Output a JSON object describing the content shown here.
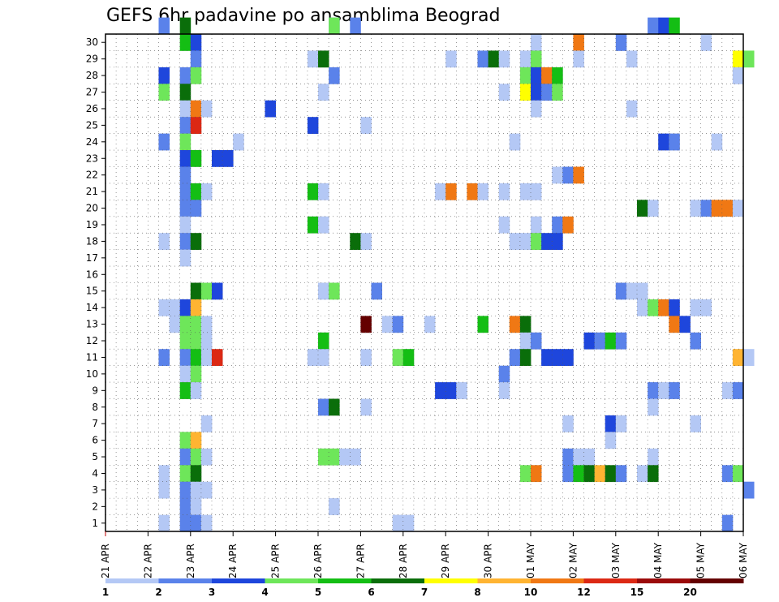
{
  "chart_data": {
    "type": "heatmap",
    "title": "GEFS 6hr padavine po ansamblima Beograd",
    "xlabel": "",
    "ylabel": "",
    "x_tick_labels": [
      "21 APR",
      "22 APR",
      "23 APR",
      "24 APR",
      "25 APR",
      "26 APR",
      "27 APR",
      "28 APR",
      "29 APR",
      "30 APR",
      "01 MAY",
      "02 MAY",
      "03 MAY",
      "04 MAY",
      "05 MAY",
      "06 MAY"
    ],
    "y_tick_labels": [
      "1",
      "2",
      "3",
      "4",
      "5",
      "6",
      "7",
      "8",
      "9",
      "10",
      "11",
      "12",
      "13",
      "14",
      "15",
      "16",
      "17",
      "18",
      "19",
      "20",
      "21",
      "22",
      "23",
      "24",
      "25",
      "26",
      "27",
      "28",
      "29",
      "30"
    ],
    "ylim": [
      0,
      30
    ],
    "time_steps": 61,
    "grid": true,
    "legend_position": "bottom",
    "legend": {
      "labels": [
        "1",
        "2",
        "3",
        "4",
        "5",
        "6",
        "7",
        "8",
        "10",
        "12",
        "15",
        "20"
      ],
      "colors": [
        "#b4c8f5",
        "#5a82ea",
        "#1e46dc",
        "#6ee65a",
        "#14be14",
        "#0a6e0a",
        "#ffff00",
        "#ffb432",
        "#f07814",
        "#dc2814",
        "#9b0a0a",
        "#640000"
      ]
    },
    "levels": [
      1,
      2,
      3,
      4,
      5,
      6,
      7,
      8,
      10,
      12,
      15,
      20
    ],
    "cells": [
      [
        5,
        30,
        2
      ],
      [
        7,
        30,
        6
      ],
      [
        21,
        30,
        2
      ],
      [
        21,
        30,
        2
      ],
      [
        21,
        30,
        4
      ],
      [
        23,
        30,
        2
      ],
      [
        51,
        30,
        2
      ],
      [
        52,
        30,
        3
      ],
      [
        53,
        30,
        5
      ],
      [
        7,
        29,
        5
      ],
      [
        8,
        29,
        3
      ],
      [
        40,
        29,
        1
      ],
      [
        44,
        29,
        9
      ],
      [
        48,
        29,
        2
      ],
      [
        56,
        29,
        1
      ],
      [
        8,
        28,
        2
      ],
      [
        19,
        28,
        1
      ],
      [
        20,
        28,
        6
      ],
      [
        32,
        28,
        1
      ],
      [
        35,
        28,
        2
      ],
      [
        36,
        28,
        6
      ],
      [
        37,
        28,
        1
      ],
      [
        39,
        28,
        1
      ],
      [
        40,
        28,
        4
      ],
      [
        44,
        28,
        1
      ],
      [
        49,
        28,
        1
      ],
      [
        59,
        28,
        7
      ],
      [
        60,
        28,
        4
      ],
      [
        5,
        27,
        3
      ],
      [
        7,
        27,
        2
      ],
      [
        8,
        27,
        4
      ],
      [
        21,
        27,
        2
      ],
      [
        39,
        27,
        4
      ],
      [
        40,
        27,
        3
      ],
      [
        41,
        27,
        9
      ],
      [
        42,
        27,
        5
      ],
      [
        59,
        27,
        1
      ],
      [
        5,
        26,
        4
      ],
      [
        7,
        26,
        6
      ],
      [
        20,
        26,
        1
      ],
      [
        37,
        26,
        1
      ],
      [
        39,
        26,
        7
      ],
      [
        40,
        26,
        3
      ],
      [
        41,
        26,
        2
      ],
      [
        42,
        26,
        4
      ],
      [
        7,
        25,
        1
      ],
      [
        8,
        25,
        9
      ],
      [
        9,
        25,
        1
      ],
      [
        15,
        25,
        3
      ],
      [
        40,
        25,
        1
      ],
      [
        49,
        25,
        1
      ],
      [
        7,
        24,
        2
      ],
      [
        8,
        24,
        10
      ],
      [
        19,
        24,
        3
      ],
      [
        24,
        24,
        1
      ],
      [
        5,
        23,
        2
      ],
      [
        7,
        23,
        4
      ],
      [
        12,
        23,
        1
      ],
      [
        38,
        23,
        1
      ],
      [
        52,
        23,
        3
      ],
      [
        53,
        23,
        2
      ],
      [
        57,
        23,
        1
      ],
      [
        7,
        22,
        3
      ],
      [
        8,
        22,
        5
      ],
      [
        10,
        22,
        3
      ],
      [
        11,
        22,
        3
      ],
      [
        7,
        21,
        2
      ],
      [
        42,
        21,
        1
      ],
      [
        43,
        21,
        2
      ],
      [
        44,
        21,
        9
      ],
      [
        7,
        20,
        2
      ],
      [
        8,
        20,
        5
      ],
      [
        9,
        20,
        1
      ],
      [
        19,
        20,
        5
      ],
      [
        20,
        20,
        1
      ],
      [
        31,
        20,
        1
      ],
      [
        32,
        20,
        9
      ],
      [
        34,
        20,
        9
      ],
      [
        35,
        20,
        1
      ],
      [
        37,
        20,
        1
      ],
      [
        39,
        20,
        1
      ],
      [
        40,
        20,
        1
      ],
      [
        7,
        19,
        2
      ],
      [
        8,
        19,
        2
      ],
      [
        50,
        19,
        6
      ],
      [
        51,
        19,
        1
      ],
      [
        55,
        19,
        1
      ],
      [
        56,
        19,
        2
      ],
      [
        57,
        19,
        9
      ],
      [
        58,
        19,
        9
      ],
      [
        59,
        19,
        1
      ],
      [
        7,
        18,
        1
      ],
      [
        19,
        18,
        5
      ],
      [
        20,
        18,
        1
      ],
      [
        37,
        18,
        1
      ],
      [
        40,
        18,
        1
      ],
      [
        42,
        18,
        2
      ],
      [
        43,
        18,
        9
      ],
      [
        5,
        17,
        1
      ],
      [
        7,
        17,
        2
      ],
      [
        8,
        17,
        6
      ],
      [
        23,
        17,
        6
      ],
      [
        24,
        17,
        1
      ],
      [
        38,
        17,
        1
      ],
      [
        39,
        17,
        1
      ],
      [
        40,
        17,
        4
      ],
      [
        41,
        17,
        3
      ],
      [
        42,
        17,
        3
      ],
      [
        7,
        16,
        1
      ],
      [
        8,
        14,
        6
      ],
      [
        9,
        14,
        4
      ],
      [
        10,
        14,
        3
      ],
      [
        20,
        14,
        1
      ],
      [
        21,
        14,
        4
      ],
      [
        25,
        14,
        2
      ],
      [
        48,
        14,
        2
      ],
      [
        49,
        14,
        1
      ],
      [
        50,
        14,
        1
      ],
      [
        5,
        13,
        1
      ],
      [
        6,
        13,
        1
      ],
      [
        7,
        13,
        3
      ],
      [
        8,
        13,
        8
      ],
      [
        50,
        13,
        1
      ],
      [
        51,
        13,
        4
      ],
      [
        52,
        13,
        9
      ],
      [
        53,
        13,
        3
      ],
      [
        55,
        13,
        1
      ],
      [
        56,
        13,
        1
      ],
      [
        6,
        12,
        1
      ],
      [
        7,
        12,
        4
      ],
      [
        8,
        12,
        4
      ],
      [
        9,
        12,
        1
      ],
      [
        24,
        12,
        12
      ],
      [
        26,
        12,
        1
      ],
      [
        27,
        12,
        2
      ],
      [
        30,
        12,
        1
      ],
      [
        35,
        12,
        5
      ],
      [
        38,
        12,
        9
      ],
      [
        39,
        12,
        6
      ],
      [
        53,
        12,
        9
      ],
      [
        54,
        12,
        3
      ],
      [
        7,
        11,
        4
      ],
      [
        8,
        11,
        4
      ],
      [
        9,
        11,
        1
      ],
      [
        20,
        11,
        5
      ],
      [
        39,
        11,
        1
      ],
      [
        40,
        11,
        2
      ],
      [
        45,
        11,
        3
      ],
      [
        46,
        11,
        2
      ],
      [
        47,
        11,
        5
      ],
      [
        48,
        11,
        2
      ],
      [
        55,
        11,
        2
      ],
      [
        5,
        10,
        2
      ],
      [
        7,
        10,
        2
      ],
      [
        8,
        10,
        5
      ],
      [
        9,
        10,
        1
      ],
      [
        10,
        10,
        10
      ],
      [
        19,
        10,
        1
      ],
      [
        20,
        10,
        1
      ],
      [
        24,
        10,
        1
      ],
      [
        27,
        10,
        4
      ],
      [
        28,
        10,
        5
      ],
      [
        38,
        10,
        2
      ],
      [
        39,
        10,
        6
      ],
      [
        41,
        10,
        3
      ],
      [
        42,
        10,
        3
      ],
      [
        43,
        10,
        3
      ],
      [
        59,
        10,
        8
      ],
      [
        60,
        10,
        1
      ],
      [
        7,
        9,
        1
      ],
      [
        8,
        9,
        4
      ],
      [
        37,
        9,
        2
      ],
      [
        7,
        8,
        5
      ],
      [
        8,
        8,
        1
      ],
      [
        31,
        8,
        3
      ],
      [
        32,
        8,
        3
      ],
      [
        33,
        8,
        1
      ],
      [
        37,
        8,
        1
      ],
      [
        51,
        8,
        2
      ],
      [
        52,
        8,
        1
      ],
      [
        53,
        8,
        2
      ],
      [
        58,
        8,
        1
      ],
      [
        59,
        8,
        2
      ],
      [
        20,
        7,
        2
      ],
      [
        21,
        7,
        6
      ],
      [
        24,
        7,
        1
      ],
      [
        51,
        7,
        1
      ],
      [
        9,
        6,
        1
      ],
      [
        43,
        6,
        1
      ],
      [
        47,
        6,
        3
      ],
      [
        48,
        6,
        1
      ],
      [
        55,
        6,
        1
      ],
      [
        7,
        5,
        4
      ],
      [
        8,
        5,
        8
      ],
      [
        47,
        5,
        1
      ],
      [
        7,
        4,
        2
      ],
      [
        8,
        4,
        4
      ],
      [
        9,
        4,
        1
      ],
      [
        20,
        4,
        4
      ],
      [
        21,
        4,
        4
      ],
      [
        22,
        4,
        1
      ],
      [
        23,
        4,
        1
      ],
      [
        43,
        4,
        2
      ],
      [
        44,
        4,
        1
      ],
      [
        45,
        4,
        1
      ],
      [
        51,
        4,
        1
      ],
      [
        5,
        3,
        1
      ],
      [
        7,
        3,
        4
      ],
      [
        8,
        3,
        6
      ],
      [
        39,
        3,
        4
      ],
      [
        40,
        3,
        9
      ],
      [
        43,
        3,
        2
      ],
      [
        44,
        3,
        5
      ],
      [
        45,
        3,
        6
      ],
      [
        46,
        3,
        8
      ],
      [
        47,
        3,
        6
      ],
      [
        48,
        3,
        2
      ],
      [
        50,
        3,
        1
      ],
      [
        51,
        3,
        6
      ],
      [
        58,
        3,
        2
      ],
      [
        59,
        3,
        4
      ],
      [
        5,
        2,
        1
      ],
      [
        7,
        2,
        2
      ],
      [
        8,
        2,
        1
      ],
      [
        9,
        2,
        1
      ],
      [
        60,
        2,
        2
      ],
      [
        7,
        1,
        2
      ],
      [
        8,
        1,
        1
      ],
      [
        21,
        1,
        1
      ],
      [
        5,
        0,
        1
      ],
      [
        7,
        0,
        2
      ],
      [
        8,
        0,
        2
      ],
      [
        9,
        0,
        1
      ],
      [
        27,
        0,
        1
      ],
      [
        28,
        0,
        1
      ],
      [
        58,
        0,
        2
      ]
    ]
  }
}
